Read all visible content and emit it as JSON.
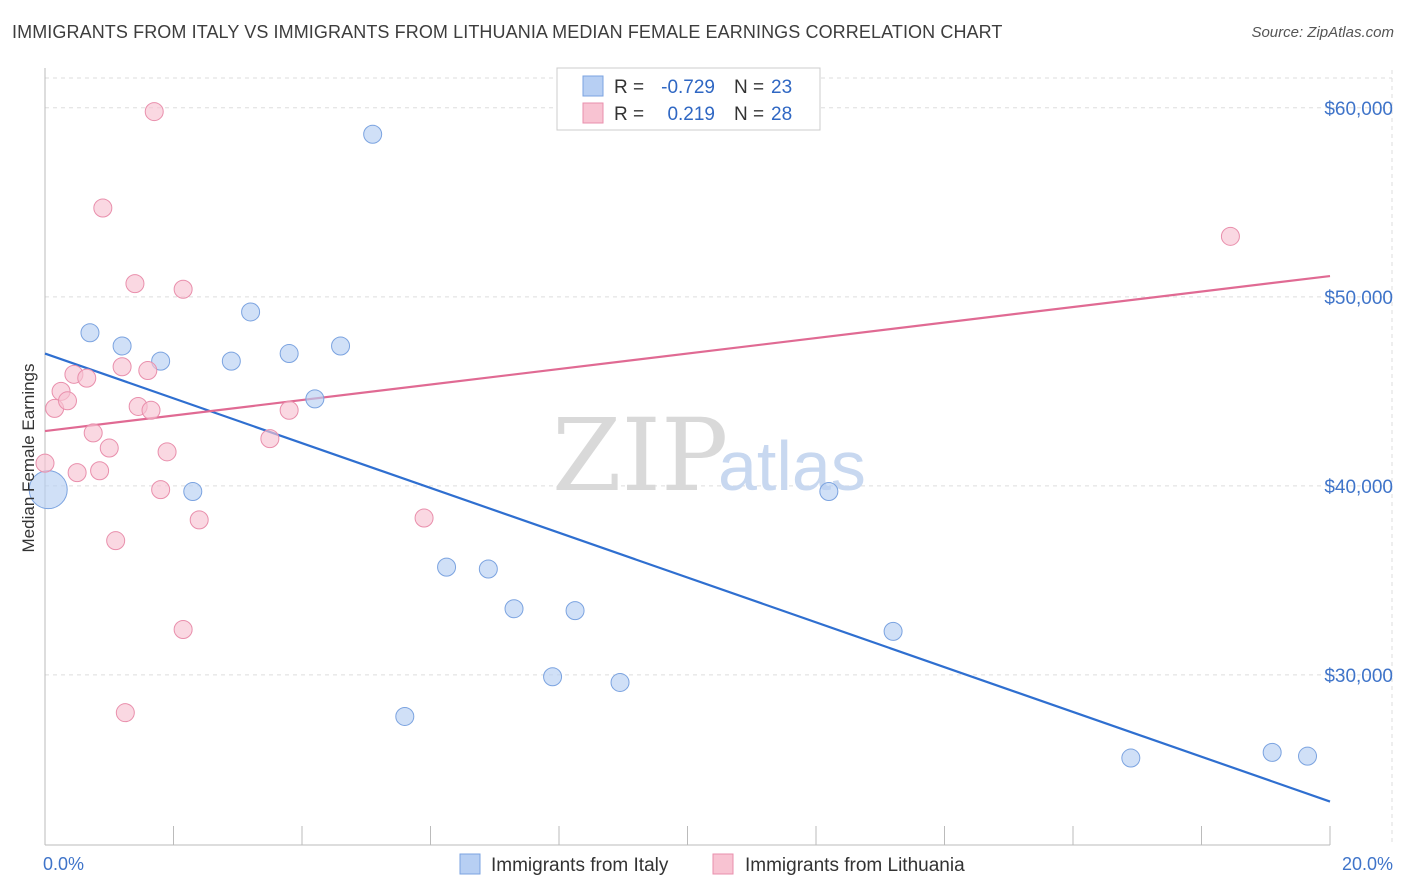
{
  "title": "IMMIGRANTS FROM ITALY VS IMMIGRANTS FROM LITHUANIA MEDIAN FEMALE EARNINGS CORRELATION CHART",
  "source": "Source: ZipAtlas.com",
  "watermark": {
    "zip": "ZIP",
    "atlas": "atlas"
  },
  "colors": {
    "italy_fill": "#b7cff3",
    "italy_stroke": "#7ba3e0",
    "italy_line": "#2f6fd0",
    "lithuania_fill": "#f8c3d2",
    "lithuania_stroke": "#e98fac",
    "lithuania_line": "#e06a93",
    "tick_text": "#3f74c9",
    "grid": "#dddddd"
  },
  "legend": {
    "rows": [
      {
        "r_label": "R =",
        "r_value": "-0.729",
        "n_label": "N =",
        "n_value": "23"
      },
      {
        "r_label": "R =",
        "r_value": "0.219",
        "n_label": "N =",
        "n_value": "28"
      }
    ]
  },
  "chart_data": {
    "type": "scatter",
    "title": "IMMIGRANTS FROM ITALY VS IMMIGRANTS FROM LITHUANIA MEDIAN FEMALE EARNINGS CORRELATION CHART",
    "xlabel": "",
    "ylabel": "Median Female Earnings",
    "xlim": [
      0,
      20
    ],
    "ylim": [
      21000,
      62000
    ],
    "x_tick_labels": [
      "0.0%",
      "20.0%"
    ],
    "y_ticks": [
      30000,
      40000,
      50000,
      60000
    ],
    "y_tick_labels": [
      "$30,000",
      "$40,000",
      "$50,000",
      "$60,000"
    ],
    "grid": true,
    "legend_position": "top-center",
    "series": [
      {
        "name": "Immigrants from Italy",
        "points": [
          {
            "x": 0.05,
            "y": 39800,
            "big": true
          },
          {
            "x": 0.7,
            "y": 48100
          },
          {
            "x": 1.2,
            "y": 47400
          },
          {
            "x": 1.8,
            "y": 46600
          },
          {
            "x": 2.3,
            "y": 39700
          },
          {
            "x": 2.9,
            "y": 46600
          },
          {
            "x": 3.2,
            "y": 49200
          },
          {
            "x": 3.8,
            "y": 47000
          },
          {
            "x": 4.2,
            "y": 44600
          },
          {
            "x": 4.6,
            "y": 47400
          },
          {
            "x": 5.1,
            "y": 58600
          },
          {
            "x": 5.6,
            "y": 27800
          },
          {
            "x": 6.25,
            "y": 35700
          },
          {
            "x": 6.9,
            "y": 35600
          },
          {
            "x": 7.3,
            "y": 33500
          },
          {
            "x": 7.9,
            "y": 29900
          },
          {
            "x": 8.25,
            "y": 33400
          },
          {
            "x": 8.95,
            "y": 29600
          },
          {
            "x": 12.2,
            "y": 39700
          },
          {
            "x": 13.2,
            "y": 32300
          },
          {
            "x": 16.9,
            "y": 25600
          },
          {
            "x": 19.1,
            "y": 25900
          },
          {
            "x": 19.65,
            "y": 25700
          }
        ],
        "trend": {
          "x": [
            0,
            20
          ],
          "y": [
            47000,
            23300
          ]
        }
      },
      {
        "name": "Immigrants from Lithuania",
        "points": [
          {
            "x": 0.0,
            "y": 41200
          },
          {
            "x": 0.15,
            "y": 44100
          },
          {
            "x": 0.25,
            "y": 45000
          },
          {
            "x": 0.35,
            "y": 44500
          },
          {
            "x": 0.45,
            "y": 45900
          },
          {
            "x": 0.5,
            "y": 40700
          },
          {
            "x": 0.65,
            "y": 45700
          },
          {
            "x": 0.75,
            "y": 42800
          },
          {
            "x": 0.85,
            "y": 40800
          },
          {
            "x": 0.9,
            "y": 54700
          },
          {
            "x": 1.0,
            "y": 42000
          },
          {
            "x": 1.1,
            "y": 37100
          },
          {
            "x": 1.2,
            "y": 46300
          },
          {
            "x": 1.25,
            "y": 28000
          },
          {
            "x": 1.4,
            "y": 50700
          },
          {
            "x": 1.45,
            "y": 44200
          },
          {
            "x": 1.6,
            "y": 46100
          },
          {
            "x": 1.65,
            "y": 44000
          },
          {
            "x": 1.7,
            "y": 59800
          },
          {
            "x": 1.8,
            "y": 39800
          },
          {
            "x": 1.9,
            "y": 41800
          },
          {
            "x": 2.15,
            "y": 50400
          },
          {
            "x": 2.15,
            "y": 32400
          },
          {
            "x": 2.4,
            "y": 38200
          },
          {
            "x": 3.5,
            "y": 42500
          },
          {
            "x": 3.8,
            "y": 44000
          },
          {
            "x": 5.9,
            "y": 38300
          },
          {
            "x": 18.45,
            "y": 53200
          }
        ],
        "trend": {
          "x": [
            0,
            20
          ],
          "y": [
            42900,
            51100
          ]
        }
      }
    ]
  }
}
